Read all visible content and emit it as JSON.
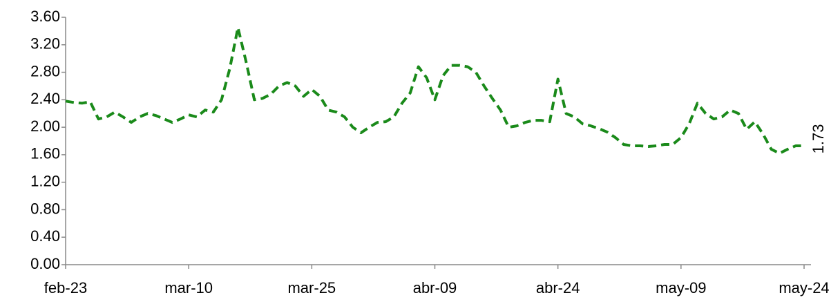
{
  "chart_data": {
    "type": "line",
    "categories": [
      "feb-23",
      null,
      null,
      null,
      null,
      null,
      null,
      null,
      null,
      null,
      null,
      null,
      null,
      null,
      null,
      "mar-10",
      null,
      null,
      null,
      null,
      null,
      null,
      null,
      null,
      null,
      null,
      null,
      null,
      null,
      null,
      "mar-25",
      null,
      null,
      null,
      null,
      null,
      null,
      null,
      null,
      null,
      null,
      null,
      null,
      null,
      null,
      "abr-09",
      null,
      null,
      null,
      null,
      null,
      null,
      null,
      null,
      null,
      null,
      null,
      null,
      null,
      null,
      "abr-24",
      null,
      null,
      null,
      null,
      null,
      null,
      null,
      null,
      null,
      null,
      null,
      null,
      null,
      null,
      "may-09",
      null,
      null,
      null,
      null,
      null,
      null,
      null,
      null,
      null,
      null,
      null,
      null,
      null,
      null,
      "may-24"
    ],
    "series": [
      {
        "color": "#1a8a1a",
        "values": [
          2.38,
          2.36,
          2.35,
          2.37,
          2.12,
          2.15,
          2.22,
          2.15,
          2.07,
          2.15,
          2.2,
          2.17,
          2.12,
          2.07,
          2.12,
          2.18,
          2.15,
          2.25,
          2.22,
          2.4,
          2.85,
          3.45,
          2.95,
          2.4,
          2.42,
          2.48,
          2.6,
          2.65,
          2.6,
          2.45,
          2.55,
          2.45,
          2.25,
          2.22,
          2.15,
          2.0,
          1.92,
          2.0,
          2.07,
          2.08,
          2.15,
          2.35,
          2.5,
          2.88,
          2.72,
          2.4,
          2.75,
          2.9,
          2.9,
          2.88,
          2.8,
          2.6,
          2.42,
          2.25,
          2.0,
          2.02,
          2.07,
          2.1,
          2.1,
          2.08,
          2.7,
          2.2,
          2.15,
          2.05,
          2.02,
          1.98,
          1.93,
          1.85,
          1.75,
          1.73,
          1.73,
          1.72,
          1.73,
          1.75,
          1.75,
          1.85,
          2.05,
          2.35,
          2.2,
          2.12,
          2.15,
          2.25,
          2.2,
          1.97,
          2.08,
          1.9,
          1.68,
          1.62,
          1.68,
          1.73,
          1.73
        ]
      }
    ],
    "ylim": [
      0,
      3.6
    ],
    "yticks": [
      {
        "value": 0,
        "label": "0.00"
      },
      {
        "value": 0.4,
        "label": "0.40"
      },
      {
        "value": 0.8,
        "label": "0.80"
      },
      {
        "value": 1.2,
        "label": "1.20"
      },
      {
        "value": 1.6,
        "label": "1.60"
      },
      {
        "value": 2.0,
        "label": "2.00"
      },
      {
        "value": 2.4,
        "label": "2.40"
      },
      {
        "value": 2.8,
        "label": "2.80"
      },
      {
        "value": 3.2,
        "label": "3.20"
      },
      {
        "value": 3.6,
        "label": "3.60"
      }
    ]
  }
}
